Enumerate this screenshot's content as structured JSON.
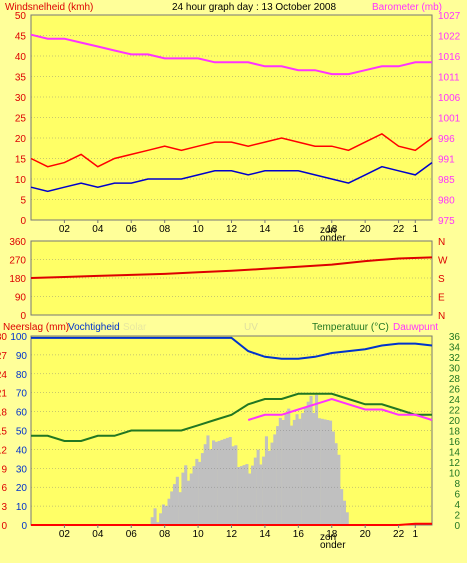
{
  "header": {
    "left_label": "Windsnelheid (kmh)",
    "title": "24 hour graph day : 13 October 2008",
    "right_label": "Barometer (mb)"
  },
  "x_ticks": [
    "02",
    "04",
    "06",
    "08",
    "10",
    "12",
    "14",
    "16",
    "18",
    "20",
    "22",
    "1"
  ],
  "sun_label_line1": "zon",
  "sun_label_line2": "onder",
  "colors": {
    "background": "#ffff99",
    "panel": "#ffff66",
    "wind_gust": "#ff0000",
    "wind_avg": "#0000cc",
    "barometer": "#ff33ff",
    "wind_dir": "#dd0000",
    "humidity": "#0033cc",
    "temperature": "#227722",
    "dewpoint": "#ff33ff",
    "rain": "#ff0000",
    "sunshine": "#c0c0c0"
  },
  "chart_data": [
    {
      "type": "line",
      "x_label_ticks": [
        "02",
        "04",
        "06",
        "08",
        "10",
        "12",
        "14",
        "16",
        "18",
        "20",
        "22",
        "1"
      ],
      "left_axis": {
        "label": "Windsnelheid (kmh)",
        "ticks": [
          0,
          5,
          10,
          15,
          20,
          25,
          30,
          35,
          40,
          45,
          50
        ],
        "range": [
          0,
          50
        ]
      },
      "right_axis": {
        "label": "Barometer (mb)",
        "ticks": [
          975,
          980,
          985,
          991,
          996,
          1001,
          1006,
          1011,
          1016,
          1022,
          1027
        ],
        "range": [
          975,
          1027
        ]
      },
      "hours": [
        0,
        1,
        2,
        3,
        4,
        5,
        6,
        7,
        8,
        9,
        10,
        11,
        12,
        13,
        14,
        15,
        16,
        17,
        18,
        19,
        20,
        21,
        22,
        23,
        24
      ],
      "series": [
        {
          "name": "Windsnelheid",
          "axis": "left",
          "values": [
            15,
            13,
            14,
            16,
            13,
            15,
            16,
            17,
            18,
            17,
            18,
            19,
            19,
            18,
            19,
            20,
            19,
            18,
            18,
            17,
            19,
            21,
            18,
            17,
            20
          ]
        },
        {
          "name": "Windsnelheid avg",
          "axis": "left",
          "values": [
            8,
            7,
            8,
            9,
            8,
            9,
            9,
            10,
            10,
            10,
            11,
            12,
            12,
            11,
            12,
            12,
            12,
            11,
            10,
            9,
            11,
            13,
            12,
            11,
            14
          ]
        },
        {
          "name": "Barometer (mb)",
          "axis": "right",
          "values": [
            1022,
            1021,
            1021,
            1020,
            1019,
            1018,
            1017,
            1017,
            1016,
            1016,
            1016,
            1015,
            1015,
            1015,
            1014,
            1014,
            1013,
            1013,
            1012,
            1012,
            1013,
            1014,
            1014,
            1015,
            1015
          ]
        }
      ]
    },
    {
      "type": "line",
      "left_axis": {
        "label": "",
        "ticks": [
          0,
          90,
          180,
          270,
          360
        ],
        "range": [
          0,
          360
        ]
      },
      "right_axis": {
        "label": "",
        "ticks": [
          "N",
          "W",
          "S",
          "E",
          "N"
        ]
      },
      "hours": [
        0,
        2,
        4,
        6,
        8,
        10,
        12,
        14,
        16,
        18,
        20,
        22,
        24
      ],
      "series": [
        {
          "name": "Wind direction",
          "values": [
            180,
            185,
            190,
            195,
            200,
            208,
            215,
            225,
            235,
            245,
            262,
            275,
            280
          ]
        }
      ]
    },
    {
      "type": "line",
      "labels": {
        "rain": "Neerslag (mm)",
        "humidity": "Vochtigheid",
        "solar": "Solar",
        "uv": "UV",
        "temperature": "Temperatuur (°C)",
        "dewpoint": "Dauwpunt"
      },
      "left_axis_humidity": {
        "ticks": [
          0,
          10,
          20,
          30,
          40,
          50,
          60,
          70,
          80,
          90,
          100
        ],
        "range": [
          0,
          100
        ]
      },
      "left_axis_rain": {
        "ticks": [
          0,
          3,
          6,
          9,
          12,
          15,
          18,
          21,
          24,
          27,
          30
        ],
        "range": [
          0,
          30
        ]
      },
      "right_axis_temperature": {
        "ticks": [
          0,
          2,
          4,
          6,
          8,
          10,
          12,
          14,
          16,
          18,
          20,
          22,
          24,
          26,
          28,
          30,
          32,
          34,
          36
        ],
        "range": [
          0,
          36
        ]
      },
      "hours": [
        0,
        1,
        2,
        3,
        4,
        5,
        6,
        7,
        8,
        9,
        10,
        11,
        12,
        13,
        14,
        15,
        16,
        17,
        18,
        19,
        20,
        21,
        22,
        23,
        24
      ],
      "series": [
        {
          "name": "Vochtigheid",
          "values": [
            99,
            99,
            99,
            99,
            99,
            99,
            99,
            99,
            99,
            99,
            99,
            99,
            99,
            92,
            89,
            88,
            88,
            89,
            91,
            92,
            93,
            95,
            96,
            96,
            95
          ]
        },
        {
          "name": "Temperatuur",
          "values": [
            17,
            17,
            16,
            16,
            17,
            17,
            18,
            18,
            18,
            18,
            19,
            20,
            21,
            23,
            24,
            24,
            25,
            25,
            25,
            24,
            23,
            23,
            22,
            21,
            21
          ]
        },
        {
          "name": "Dauwpunt",
          "values": [
            null,
            null,
            null,
            null,
            null,
            null,
            null,
            null,
            null,
            null,
            null,
            null,
            null,
            20,
            21,
            21,
            22,
            23,
            24,
            23,
            22,
            22,
            21,
            21,
            20
          ]
        },
        {
          "name": "Neerslag",
          "values": [
            0,
            0,
            0,
            0,
            0,
            0,
            0,
            0,
            0,
            0,
            0,
            0,
            0,
            0,
            0,
            0,
            0,
            0,
            0,
            0,
            0,
            0,
            0,
            0.2,
            0.2
          ]
        },
        {
          "name": "Sunshine",
          "values": [
            0,
            0,
            0,
            0,
            0,
            0,
            0,
            0,
            15,
            25,
            35,
            50,
            40,
            30,
            42,
            55,
            60,
            65,
            50,
            0,
            0,
            0,
            0,
            0,
            0
          ]
        }
      ]
    }
  ]
}
